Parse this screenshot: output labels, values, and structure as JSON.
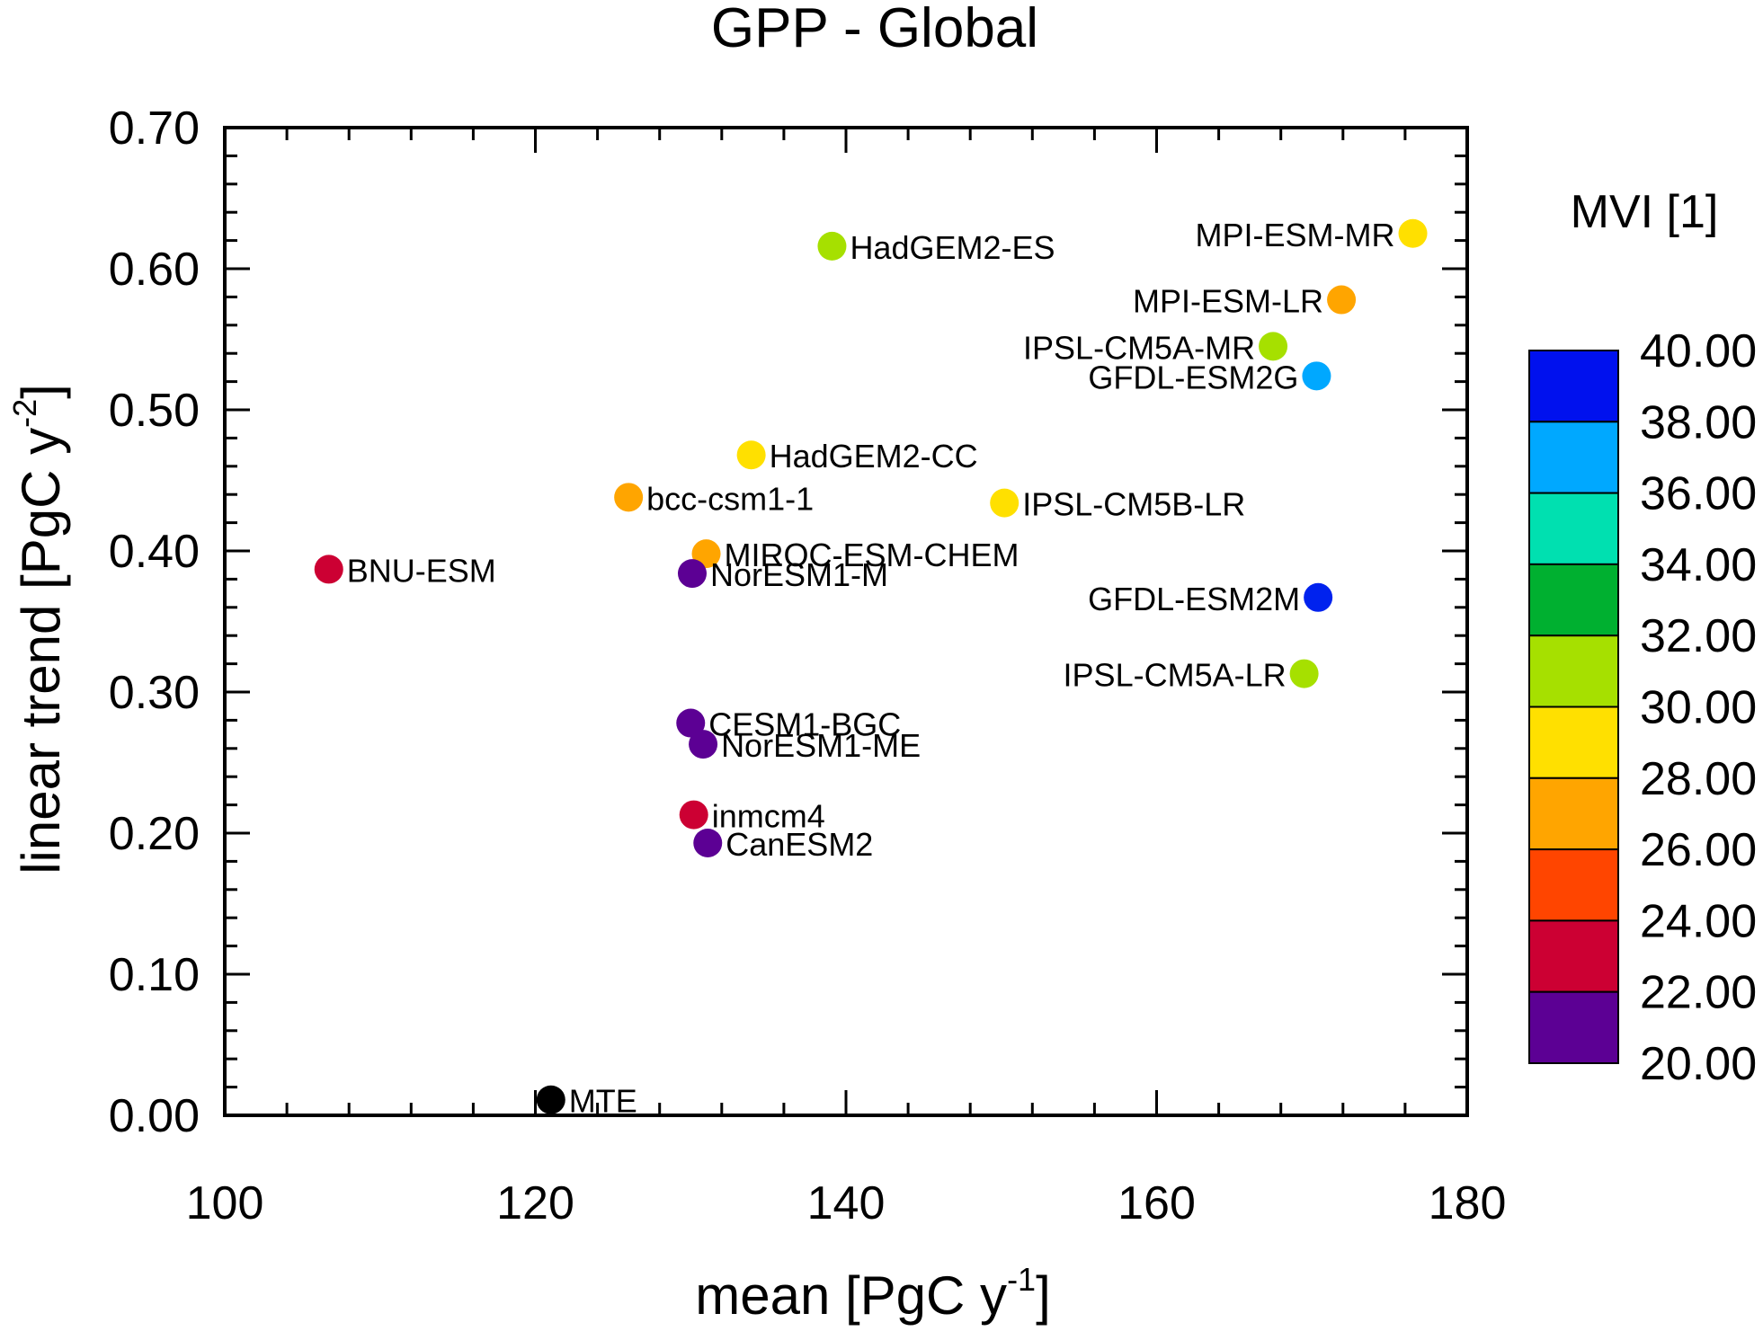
{
  "chart_data": {
    "type": "scatter",
    "title": "GPP - Global",
    "xlabel": "mean [PgC y",
    "xlabel_sup": "-1",
    "xlabel_end": "]",
    "ylabel": "linear trend [PgC y",
    "ylabel_sup": "-2",
    "ylabel_end": "]",
    "xlim": [
      100,
      180
    ],
    "ylim": [
      0.0,
      0.7
    ],
    "x_ticks": [
      100,
      120,
      140,
      160,
      180
    ],
    "x_tick_labels": [
      "100",
      "120",
      "140",
      "160",
      "180"
    ],
    "y_ticks": [
      0.0,
      0.1,
      0.2,
      0.3,
      0.4,
      0.5,
      0.6,
      0.7
    ],
    "y_tick_labels": [
      "0.00",
      "0.10",
      "0.20",
      "0.30",
      "0.40",
      "0.50",
      "0.60",
      "0.70"
    ],
    "grid": false,
    "points": [
      {
        "label": "HadGEM2-ES",
        "x": 139.1,
        "y": 0.616,
        "color": "#a6e000",
        "label_side": "right"
      },
      {
        "label": "MPI-ESM-MR",
        "x": 176.5,
        "y": 0.625,
        "color": "#ffe000",
        "label_side": "left"
      },
      {
        "label": "MPI-ESM-LR",
        "x": 171.9,
        "y": 0.578,
        "color": "#ffa500",
        "label_side": "left"
      },
      {
        "label": "IPSL-CM5A-MR",
        "x": 167.5,
        "y": 0.545,
        "color": "#a6e000",
        "label_side": "left"
      },
      {
        "label": "GFDL-ESM2G",
        "x": 170.3,
        "y": 0.524,
        "color": "#00a8ff",
        "label_side": "left"
      },
      {
        "label": "HadGEM2-CC",
        "x": 133.9,
        "y": 0.468,
        "color": "#ffe000",
        "label_side": "right"
      },
      {
        "label": "bcc-csm1-1",
        "x": 126.0,
        "y": 0.438,
        "color": "#ffa500",
        "label_side": "right"
      },
      {
        "label": "IPSL-CM5B-LR",
        "x": 150.2,
        "y": 0.434,
        "color": "#ffe000",
        "label_side": "right"
      },
      {
        "label": "MIROC-ESM-CHEM",
        "x": 131.0,
        "y": 0.398,
        "color": "#ffa500",
        "label_side": "right"
      },
      {
        "label": "BNU-ESM",
        "x": 106.7,
        "y": 0.387,
        "color": "#cc0033",
        "label_side": "right"
      },
      {
        "label": "NorESM1-M",
        "x": 130.1,
        "y": 0.384,
        "color": "#5c0094",
        "label_side": "right"
      },
      {
        "label": "GFDL-ESM2M",
        "x": 170.4,
        "y": 0.367,
        "color": "#0022ee",
        "label_side": "left"
      },
      {
        "label": "IPSL-CM5A-LR",
        "x": 169.5,
        "y": 0.313,
        "color": "#a6e000",
        "label_side": "left"
      },
      {
        "label": "CESM1-BGC",
        "x": 130.0,
        "y": 0.278,
        "color": "#5c0094",
        "label_side": "right"
      },
      {
        "label": "NorESM1-ME",
        "x": 130.8,
        "y": 0.263,
        "color": "#5c0094",
        "label_side": "right"
      },
      {
        "label": "inmcm4",
        "x": 130.2,
        "y": 0.213,
        "color": "#cc0033",
        "label_side": "right"
      },
      {
        "label": "CanESM2",
        "x": 131.1,
        "y": 0.193,
        "color": "#5c0094",
        "label_side": "right"
      },
      {
        "label": "MTE",
        "x": 121.0,
        "y": 0.011,
        "color": "#000000",
        "label_side": "right"
      }
    ],
    "colorbar": {
      "title": "MVI [1]",
      "levels": [
        "40.00",
        "38.00",
        "36.00",
        "34.00",
        "32.00",
        "30.00",
        "28.00",
        "26.00",
        "24.00",
        "22.00",
        "20.00"
      ],
      "colors": [
        "#0011ee",
        "#00a8ff",
        "#00e0b0",
        "#00b030",
        "#a6e000",
        "#ffe000",
        "#ffa500",
        "#ff4500",
        "#cc0033",
        "#5c0094"
      ]
    }
  }
}
